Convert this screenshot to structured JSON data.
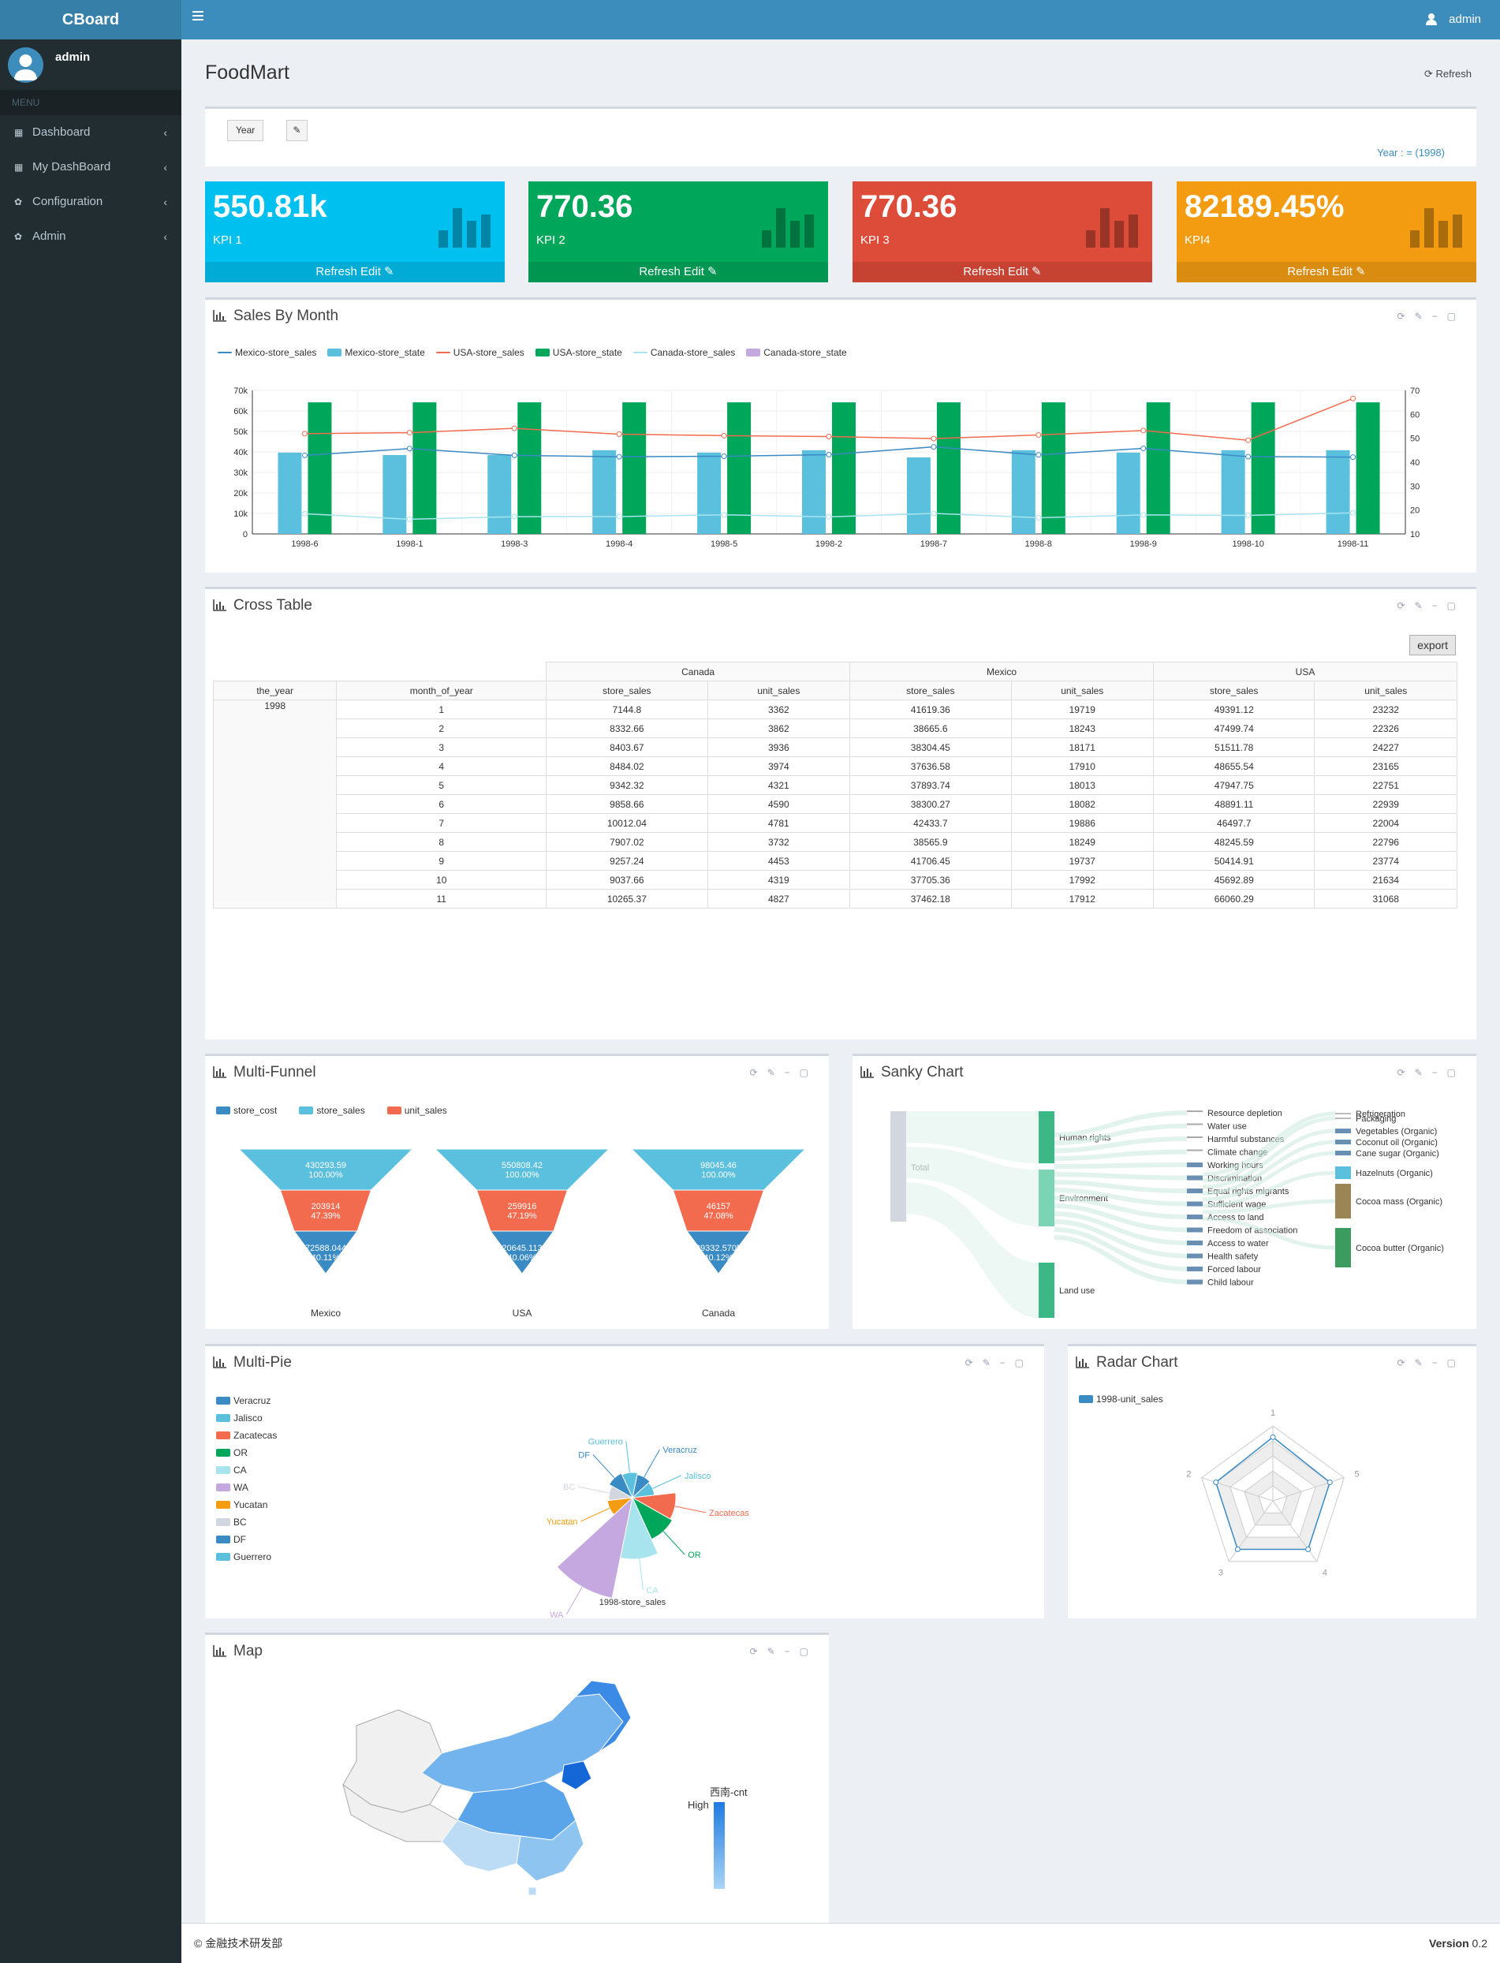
{
  "app": {
    "brand": "CBoard",
    "user": "admin"
  },
  "sidebar": {
    "user": "admin",
    "menu_header": "MENU",
    "items": [
      {
        "label": "Dashboard"
      },
      {
        "label": "My DashBoard"
      },
      {
        "label": "Configuration"
      },
      {
        "label": "Admin"
      }
    ]
  },
  "page": {
    "title": "FoodMart",
    "refresh": "Refresh"
  },
  "filter": {
    "button": "Year",
    "selected": "Year : = (1998)"
  },
  "kpis": [
    {
      "value": "550.81k",
      "label": "KPI 1",
      "color": "#00c0ef",
      "footer": "Refresh  Edit"
    },
    {
      "value": "770.36",
      "label": "KPI 2",
      "color": "#00a65a",
      "footer": "Refresh  Edit"
    },
    {
      "value": "770.36",
      "label": "KPI 3",
      "color": "#dd4b39",
      "footer": "Refresh  Edit"
    },
    {
      "value": "82189.45%",
      "label": "KPI4",
      "color": "#f39c12",
      "footer": "Refresh  Edit"
    }
  ],
  "sales_by_month": {
    "title": "Sales By Month",
    "chart_data": {
      "type": "bar",
      "categories": [
        "1998-6",
        "1998-1",
        "1998-3",
        "1998-4",
        "1998-5",
        "1998-2",
        "1998-7",
        "1998-8",
        "1998-9",
        "1998-10",
        "1998-11"
      ],
      "yleft": {
        "ticks": [
          "0",
          "10k",
          "20k",
          "30k",
          "40k",
          "50k",
          "60k",
          "70k"
        ],
        "ylim": [
          0,
          70000
        ]
      },
      "yright": {
        "ticks": [
          "10",
          "20",
          "30",
          "40",
          "50",
          "60",
          "70"
        ],
        "ylim": [
          10,
          70
        ]
      },
      "series": [
        {
          "name": "Mexico-store_sales",
          "type": "line",
          "axis": "left",
          "color": "#3a8ac4",
          "values": [
            38300.27,
            41619.36,
            38304.45,
            37636.58,
            37893.74,
            38665.6,
            42433.7,
            38565.9,
            41706.45,
            37705.36,
            37462.18
          ]
        },
        {
          "name": "Mexico-store_state",
          "type": "bar",
          "axis": "right",
          "color": "#5bc0de",
          "values": [
            44,
            43,
            43,
            45,
            44,
            45,
            42,
            45,
            44,
            45,
            45
          ]
        },
        {
          "name": "USA-store_sales",
          "type": "line",
          "axis": "left",
          "color": "#f26b4f",
          "values": [
            48891.11,
            49391.12,
            51511.78,
            48655.54,
            47947.75,
            47499.74,
            46497.7,
            48245.59,
            50414.91,
            45692.89,
            66060.29
          ]
        },
        {
          "name": "USA-store_state",
          "type": "bar",
          "axis": "right",
          "color": "#00a65a",
          "values": [
            65,
            65,
            65,
            65,
            65,
            65,
            65,
            65,
            65,
            65,
            65
          ]
        },
        {
          "name": "Canada-store_sales",
          "type": "line",
          "axis": "left",
          "color": "#a8e4ee",
          "values": [
            9858.66,
            7144.8,
            8403.67,
            8484.02,
            9342.32,
            8332.66,
            10012.04,
            7907.02,
            9257.24,
            9037.66,
            10265.37
          ]
        },
        {
          "name": "Canada-store_state",
          "type": "bar",
          "axis": "right",
          "color": "#c5a8e0",
          "values": [
            0,
            0,
            0,
            0,
            0,
            0,
            0,
            0,
            0,
            0,
            0
          ]
        }
      ]
    }
  },
  "cross_table": {
    "title": "Cross Table",
    "export": "export",
    "countries": [
      "Canada",
      "Mexico",
      "USA"
    ],
    "row_headers": [
      "the_year",
      "month_of_year"
    ],
    "measures": [
      "store_sales",
      "unit_sales",
      "store_sales",
      "unit_sales",
      "store_sales",
      "unit_sales"
    ],
    "year": "1998",
    "rows": [
      [
        "1",
        "7144.8",
        "3362",
        "41619.36",
        "19719",
        "49391.12",
        "23232"
      ],
      [
        "2",
        "8332.66",
        "3862",
        "38665.6",
        "18243",
        "47499.74",
        "22326"
      ],
      [
        "3",
        "8403.67",
        "3936",
        "38304.45",
        "18171",
        "51511.78",
        "24227"
      ],
      [
        "4",
        "8484.02",
        "3974",
        "37636.58",
        "17910",
        "48655.54",
        "23165"
      ],
      [
        "5",
        "9342.32",
        "4321",
        "37893.74",
        "18013",
        "47947.75",
        "22751"
      ],
      [
        "6",
        "9858.66",
        "4590",
        "38300.27",
        "18082",
        "48891.11",
        "22939"
      ],
      [
        "7",
        "10012.04",
        "4781",
        "42433.7",
        "19886",
        "46497.7",
        "22004"
      ],
      [
        "8",
        "7907.02",
        "3732",
        "38565.9",
        "18249",
        "48245.59",
        "22796"
      ],
      [
        "9",
        "9257.24",
        "4453",
        "41706.45",
        "19737",
        "50414.91",
        "23774"
      ],
      [
        "10",
        "9037.66",
        "4319",
        "37705.36",
        "17992",
        "45692.89",
        "21634"
      ],
      [
        "11",
        "10265.37",
        "4827",
        "37462.18",
        "17912",
        "66060.29",
        "31068"
      ]
    ]
  },
  "funnel": {
    "title": "Multi-Funnel",
    "legend": [
      {
        "name": "store_cost",
        "color": "#3a8ac4"
      },
      {
        "name": "store_sales",
        "color": "#5bc0de"
      },
      {
        "name": "unit_sales",
        "color": "#f26b4f"
      }
    ],
    "chart_data": {
      "type": "funnel",
      "groups": [
        {
          "name": "Mexico",
          "levels": [
            {
              "value": "430293.59",
              "pct": "100.00%"
            },
            {
              "value": "203914",
              "pct": "47.39%"
            },
            {
              "value": "172588.0448",
              "pct": "40.11%"
            }
          ]
        },
        {
          "name": "USA",
          "levels": [
            {
              "value": "550808.42",
              "pct": "100.00%"
            },
            {
              "value": "259916",
              "pct": "47.19%"
            },
            {
              "value": "220645.1136",
              "pct": "40.06%"
            }
          ]
        },
        {
          "name": "Canada",
          "levels": [
            {
              "value": "98045.46",
              "pct": "100.00%"
            },
            {
              "value": "46157",
              "pct": "47.08%"
            },
            {
              "value": "39332.5705",
              "pct": "40.12%"
            }
          ]
        }
      ]
    }
  },
  "sankey": {
    "title": "Sanky Chart",
    "source": "Total",
    "middle": [
      "Human rights",
      "Environment",
      "Land use"
    ],
    "issues": [
      "Resource depletion",
      "Water use",
      "Harmful substances",
      "Climate change",
      "Working hours",
      "Discrimination",
      "Equal rights migrants",
      "Sufficient wage",
      "Access to land",
      "Freedom of association",
      "Access to water",
      "Health safety",
      "Forced labour",
      "Child labour"
    ],
    "products": [
      "Refrigeration",
      "Packaging",
      "Vegetables (Organic)",
      "Coconut oil (Organic)",
      "Cane sugar (Organic)",
      "Hazelnuts (Organic)",
      "Cocoa mass (Organic)",
      "Cocoa butter (Organic)"
    ]
  },
  "multipie": {
    "title": "Multi-Pie",
    "series_label": "1998-store_sales",
    "legend": [
      {
        "name": "Veracruz",
        "color": "#3a8ac4"
      },
      {
        "name": "Jalisco",
        "color": "#5bc0de"
      },
      {
        "name": "Zacatecas",
        "color": "#f26b4f"
      },
      {
        "name": "OR",
        "color": "#00a65a"
      },
      {
        "name": "CA",
        "color": "#a8e4ee"
      },
      {
        "name": "WA",
        "color": "#c5a8e0"
      },
      {
        "name": "Yucatan",
        "color": "#f39c12"
      },
      {
        "name": "BC",
        "color": "#d2d6de"
      },
      {
        "name": "DF",
        "color": "#3a8ac4"
      },
      {
        "name": "Guerrero",
        "color": "#5bc0de"
      }
    ],
    "chart_data": {
      "type": "pie",
      "rose": true,
      "slices": [
        {
          "name": "Veracruz",
          "value": 30
        },
        {
          "name": "Jalisco",
          "value": 28
        },
        {
          "name": "Zacatecas",
          "value": 55
        },
        {
          "name": "OR",
          "value": 58
        },
        {
          "name": "CA",
          "value": 78
        },
        {
          "name": "WA",
          "value": 130
        },
        {
          "name": "Yucatan",
          "value": 32
        },
        {
          "name": "BC",
          "value": 30
        },
        {
          "name": "DF",
          "value": 34
        },
        {
          "name": "Guerrero",
          "value": 32
        }
      ]
    }
  },
  "radar": {
    "title": "Radar Chart",
    "legend": "1998-unit_sales",
    "chart_data": {
      "type": "radar",
      "indicators": [
        "1",
        "5",
        "4",
        "3",
        "2"
      ],
      "values": [
        0.85,
        0.8,
        0.8,
        0.8,
        0.8
      ]
    }
  },
  "map": {
    "title": "Map",
    "legend_title": "西南-cnt",
    "legend_high": "High"
  },
  "footer": {
    "copyright": "© 金融技术研发部",
    "version_label": "Version",
    "version": "0.2"
  }
}
